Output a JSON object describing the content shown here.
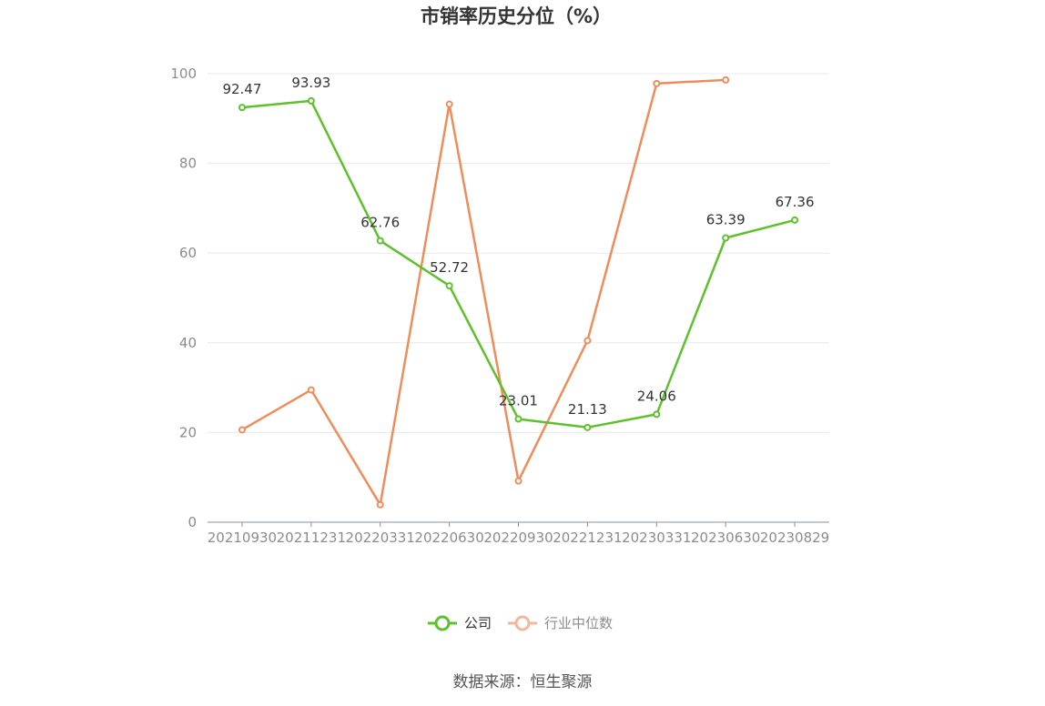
{
  "colors": {
    "company": "#5dc12b",
    "industry": "#f08c5a",
    "industry_legend": "#f5b79a",
    "grid": "#e6e8ee",
    "axis": "#8a8f99"
  },
  "chart_data": {
    "type": "line",
    "title": "市销率历史分位（%）",
    "categories": [
      "20210930",
      "20211231",
      "20220331",
      "20220630",
      "20220930",
      "20221231",
      "20230331",
      "20230630",
      "20230829"
    ],
    "ylim": [
      0,
      100
    ],
    "yticks": [
      0,
      20,
      40,
      60,
      80,
      100
    ],
    "grid": true,
    "legend_position": "bottom-center",
    "series": [
      {
        "name": "公司",
        "key": "company",
        "values": [
          92.47,
          93.93,
          62.76,
          52.72,
          23.01,
          21.13,
          24.06,
          63.39,
          67.36
        ],
        "labels": [
          "92.47",
          "93.93",
          "62.76",
          "52.72",
          "23.01",
          "21.13",
          "24.06",
          "63.39",
          "67.36"
        ]
      },
      {
        "name": "行业中位数",
        "key": "industry",
        "values": [
          20.6,
          29.5,
          3.9,
          93.2,
          9.2,
          40.5,
          97.8,
          98.6,
          null
        ]
      }
    ]
  },
  "source": "数据来源：恒生聚源"
}
